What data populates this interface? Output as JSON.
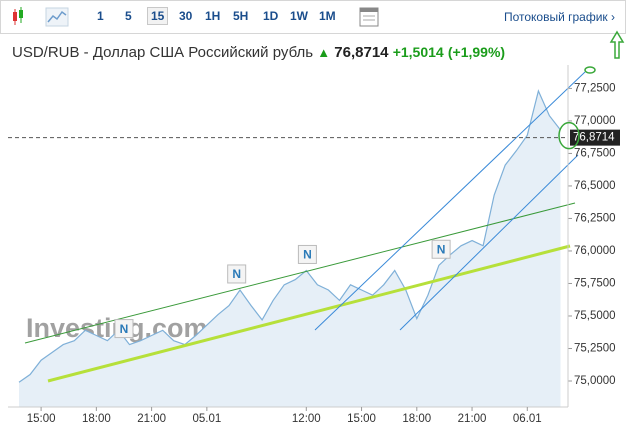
{
  "toolbar": {
    "intervals": [
      "1",
      "5",
      "15",
      "30",
      "1H",
      "5H",
      "1D",
      "1W",
      "1M"
    ],
    "active_index": 2,
    "stream_link": "Потоковый график"
  },
  "header": {
    "title": "USD/RUB - Доллар США Российский рубль",
    "change": "+1,5014",
    "change_percent": "(+1,99%)"
  },
  "chart_data": {
    "type": "area",
    "watermark": "Investing.com",
    "categories": [
      null,
      null,
      "15:00",
      null,
      null,
      null,
      null,
      "18:00",
      null,
      null,
      null,
      null,
      "21:00",
      null,
      null,
      null,
      null,
      "05.01",
      null,
      null,
      null,
      null,
      null,
      null,
      null,
      null,
      "12:00",
      null,
      null,
      null,
      null,
      "15:00",
      null,
      null,
      null,
      null,
      "18:00",
      null,
      null,
      null,
      null,
      "21:00",
      null,
      null,
      null,
      null,
      "06.01",
      null,
      null,
      null
    ],
    "series": [
      {
        "name": "USD/RUB",
        "color": "#7fb0d8",
        "fill": "#e6eff7",
        "values": [
          74.99,
          75.05,
          75.16,
          75.22,
          75.28,
          75.31,
          75.39,
          75.35,
          75.31,
          75.39,
          75.28,
          75.31,
          75.35,
          75.39,
          75.31,
          75.28,
          75.35,
          75.43,
          75.51,
          75.58,
          75.7,
          75.58,
          75.47,
          75.62,
          75.74,
          75.78,
          75.85,
          75.74,
          75.7,
          75.62,
          75.74,
          75.7,
          75.66,
          75.74,
          75.85,
          75.7,
          75.48,
          75.66,
          75.89,
          75.97,
          76.04,
          76.08,
          76.04,
          76.43,
          76.66,
          76.77,
          76.89,
          77.23,
          77.04,
          76.93
        ]
      }
    ],
    "ylim": [
      74.8,
      77.43
    ],
    "yticks": [
      {
        "value": 75,
        "label": "75,0000"
      },
      {
        "value": 75.25,
        "label": "75,2500"
      },
      {
        "value": 75.5,
        "label": "75,5000"
      },
      {
        "value": 75.75,
        "label": "75,7500"
      },
      {
        "value": 76,
        "label": "76,0000"
      },
      {
        "value": 76.25,
        "label": "76,2500"
      },
      {
        "value": 76.5,
        "label": "76,5000"
      },
      {
        "value": 76.75,
        "label": "76,7500"
      },
      {
        "value": 77,
        "label": "77,0000"
      },
      {
        "value": 77.25,
        "label": "77,2500"
      }
    ],
    "grid": false,
    "last_price": {
      "value": 76.8714,
      "label": "76,8714"
    },
    "news_markers": [
      {
        "label": "N",
        "index": 9.5
      },
      {
        "label": "N",
        "index": 19.7
      },
      {
        "label": "N",
        "index": 26.1
      },
      {
        "label": "N",
        "index": 38.2
      }
    ]
  }
}
